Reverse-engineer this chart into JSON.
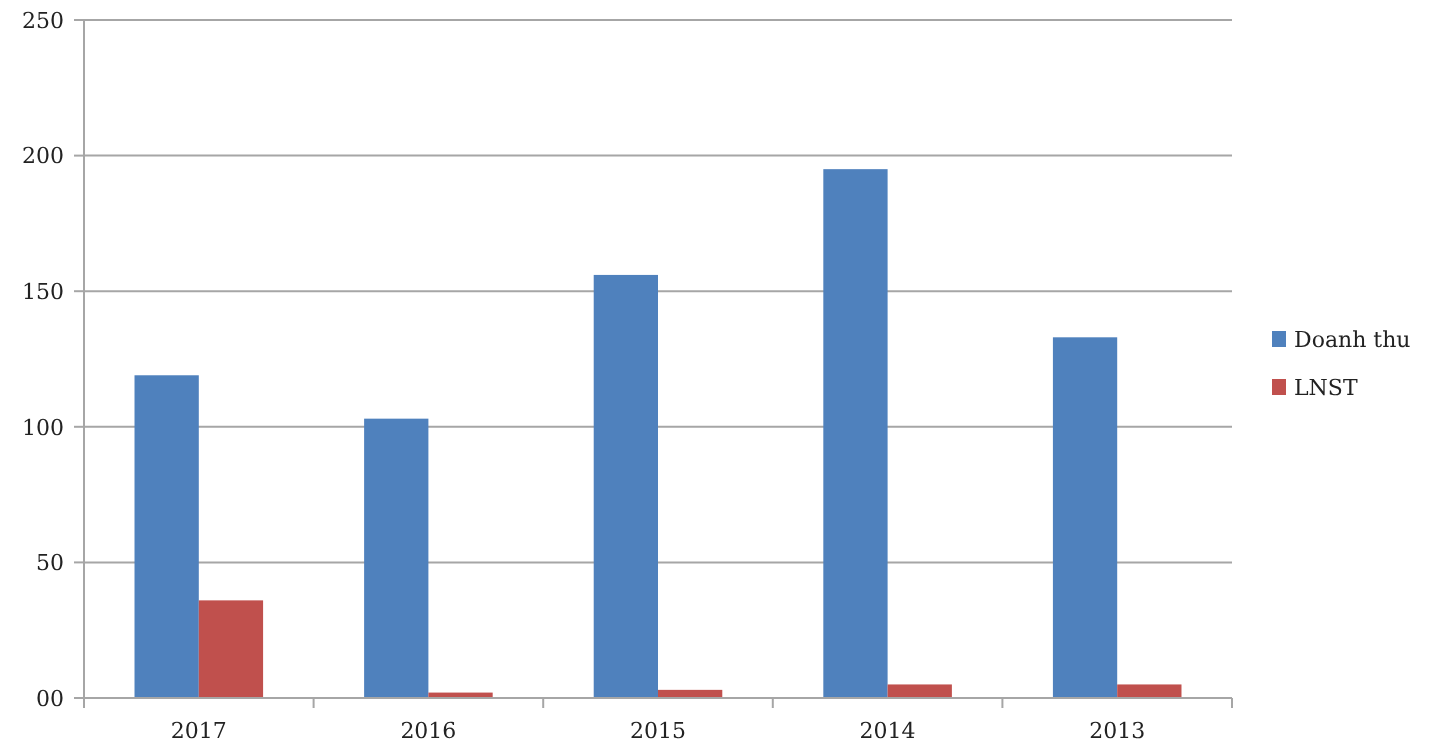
{
  "chart_data": {
    "type": "bar",
    "categories": [
      "2017",
      "2016",
      "2015",
      "2014",
      "2013"
    ],
    "series": [
      {
        "name": "Doanh thu",
        "color": "#4f81bd",
        "values": [
          119,
          103,
          156,
          195,
          133
        ]
      },
      {
        "name": "LNST",
        "color": "#c0504d",
        "values": [
          36,
          2,
          3,
          5,
          5
        ]
      }
    ],
    "ylim": [
      0,
      250
    ],
    "yticks": [
      {
        "value": 0,
        "label": "00"
      },
      50,
      100,
      150,
      200,
      250
    ],
    "grid": "y",
    "legend": "right"
  }
}
